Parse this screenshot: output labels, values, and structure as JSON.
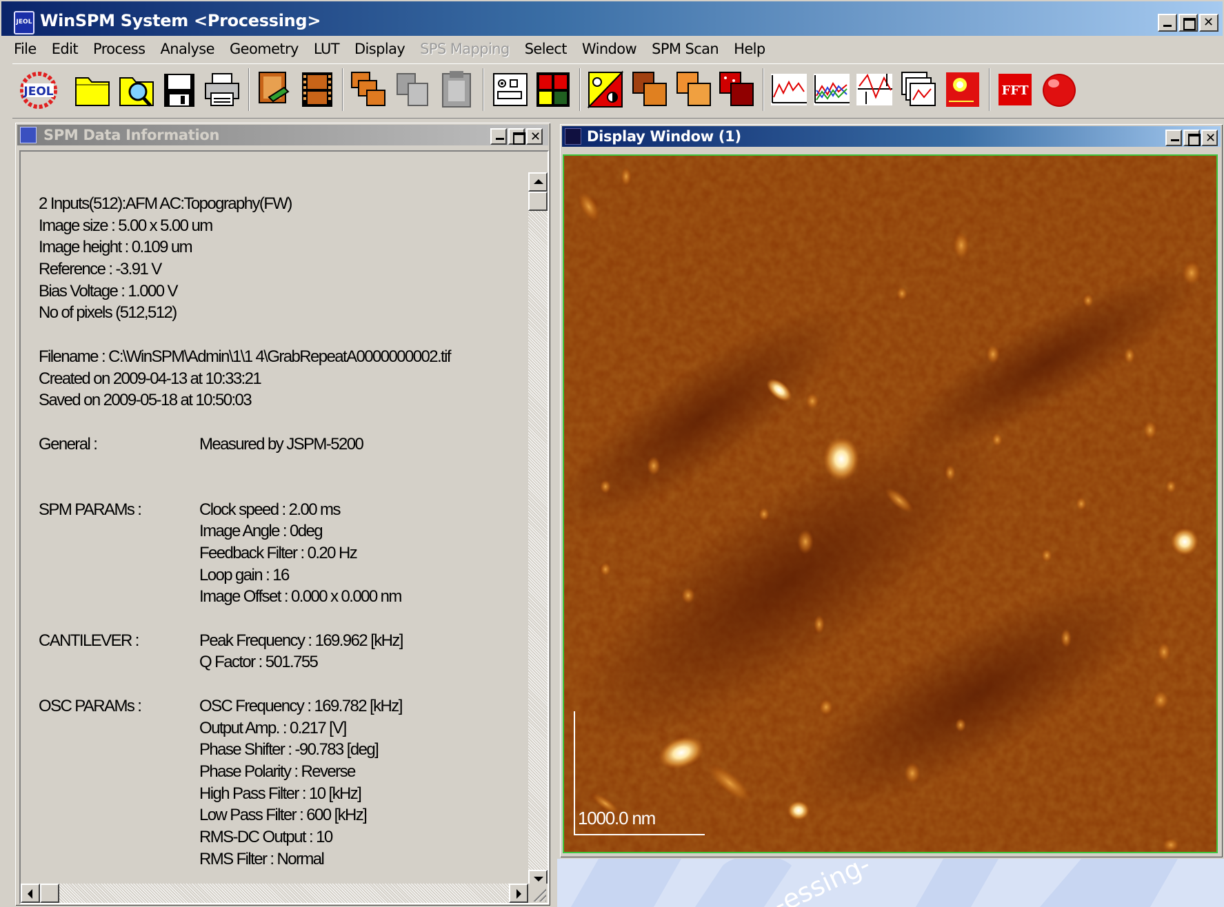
{
  "app": {
    "title": "WinSPM System <Processing>"
  },
  "menu": [
    {
      "label": "File",
      "enabled": true
    },
    {
      "label": "Edit",
      "enabled": true
    },
    {
      "label": "Process",
      "enabled": true
    },
    {
      "label": "Analyse",
      "enabled": true
    },
    {
      "label": "Geometry",
      "enabled": true
    },
    {
      "label": "LUT",
      "enabled": true
    },
    {
      "label": "Display",
      "enabled": true
    },
    {
      "label": "SPS Mapping",
      "enabled": false
    },
    {
      "label": "Select",
      "enabled": true
    },
    {
      "label": "Window",
      "enabled": true
    },
    {
      "label": "SPM Scan",
      "enabled": true
    },
    {
      "label": "Help",
      "enabled": true
    }
  ],
  "toolbar": {
    "fft_label": "FFT",
    "jeol_label": "JEOL",
    "icons": [
      "jeol-logo-icon",
      "open-folder-icon",
      "search-folder-icon",
      "save-icon",
      "print-icon",
      "edit-image-icon",
      "film-strip-icon",
      "tile-images-icon",
      "gray-images-icon",
      "clipboard-icon",
      "control-panel-icon",
      "color-grid-icon",
      "contrast-icon",
      "overlay-copy-icon",
      "cascade-icon",
      "red-blocks-icon",
      "line-profile-icon",
      "multi-profile-icon",
      "section-measure-icon",
      "stacked-profiles-icon",
      "hot-spot-icon",
      "fft-icon",
      "record-icon"
    ]
  },
  "info_window": {
    "title": "SPM Data Information",
    "lines": [
      "2 Inputs(512):AFM AC:Topography(FW)",
      "Image size : 5.00 x 5.00 um",
      "Image height : 0.109 um",
      "Reference : -3.91 V",
      "Bias Voltage : 1.000 V",
      "No of pixels (512,512)"
    ],
    "file_lines": [
      "Filename :  C:\\WinSPM\\Admin\\1\\1 4\\GrabRepeatA0000000002.tif",
      "Created on 2009-04-13 at 10:33:21",
      "Saved on 2009-05-18 at 10:50:03"
    ],
    "sections": [
      {
        "label": "General :",
        "values": [
          "Measured by JSPM-5200"
        ]
      },
      {
        "label": "SPM PARAMs :",
        "values": [
          "Clock speed : 2.00 ms",
          "Image Angle : 0deg",
          "Feedback Filter : 0.20 Hz",
          "Loop gain : 16",
          "Image Offset : 0.000 x 0.000 nm"
        ]
      },
      {
        "label": "CANTILEVER :",
        "values": [
          "Peak Frequency : 169.962 [kHz]",
          "Q Factor : 501.755"
        ]
      },
      {
        "label": "OSC PARAMs :",
        "values": [
          "OSC Frequency : 169.782 [kHz]",
          "Output Amp. : 0.217 [V]",
          "Phase Shifter : -90.783 [deg]",
          "Phase Polarity : Reverse",
          "High Pass Filter : 10 [kHz]",
          "Low Pass Filter : 600 [kHz]",
          "RMS-DC Output : 10",
          "RMS Filter : Normal"
        ]
      }
    ]
  },
  "display_window": {
    "title": "Display Window (1)",
    "scale_bar_label": "1000.0 nm"
  },
  "desktop": {
    "watermark_text": "-essing-"
  },
  "colors": {
    "active_title_start": "#0a246a",
    "active_title_end": "#a6caf0",
    "inactive_title_text": "#d4d0c8",
    "image_frame": "#3ec63e",
    "afm_base": "#8a3a06"
  }
}
